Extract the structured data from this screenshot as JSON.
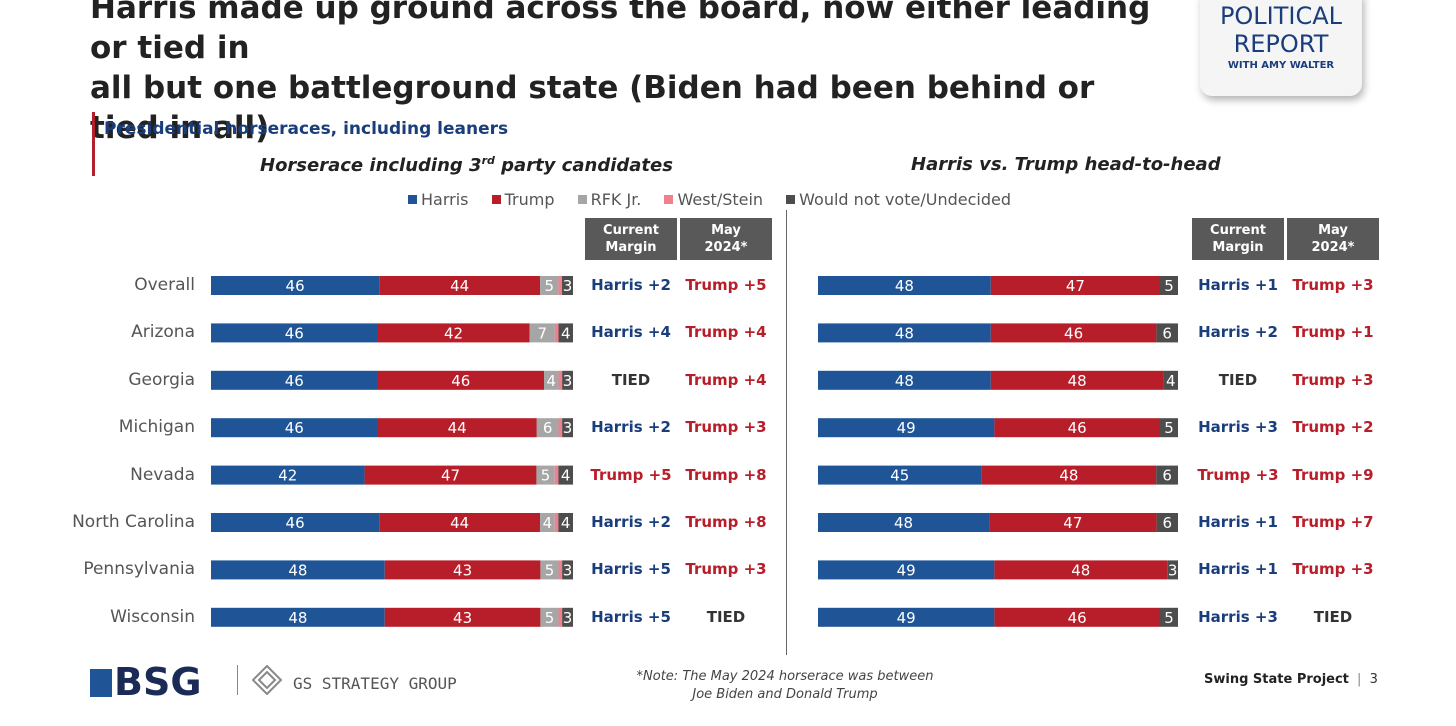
{
  "header": {
    "title_line1": "Harris made up ground across the board, now either leading or tied in",
    "title_line2": "all but one battleground state (Biden had been behind or tied in all)",
    "logo_line1": "POLITICAL",
    "logo_line2": "REPORT",
    "logo_line3": "WITH AMY WALTER"
  },
  "subtitle": "Presidential horseraces, including leaners",
  "colors": {
    "harris": "#1f5596",
    "trump": "#b81e29",
    "rfk": "#a6a6a6",
    "west_stein": "#f0808c",
    "undecided": "#4d4d4d",
    "harris_text": "#1a3d7c",
    "trump_text": "#b81e29"
  },
  "legend": [
    {
      "label": "Harris",
      "color": "#1f5596"
    },
    {
      "label": "Trump",
      "color": "#b81e29"
    },
    {
      "label": "RFK Jr.",
      "color": "#a6a6a6"
    },
    {
      "label": "West/Stein",
      "color": "#f0808c"
    },
    {
      "label": "Would not vote/Undecided",
      "color": "#4d4d4d"
    }
  ],
  "table_headers": {
    "current_line1": "Current",
    "current_line2": "Margin",
    "may_line1": "May",
    "may_line2": "2024*"
  },
  "chart_data": [
    {
      "type": "bar",
      "title_part1": "Horserace including 3",
      "title_sup": "rd",
      "title_part2": " party candidates",
      "categories": [
        "Overall",
        "Arizona",
        "Georgia",
        "Michigan",
        "Nevada",
        "North Carolina",
        "Pennsylvania",
        "Wisconsin"
      ],
      "series": [
        {
          "name": "Harris",
          "values": [
            46,
            46,
            46,
            46,
            42,
            46,
            48,
            48
          ]
        },
        {
          "name": "Trump",
          "values": [
            44,
            42,
            46,
            44,
            47,
            44,
            43,
            43
          ]
        },
        {
          "name": "RFK Jr.",
          "values": [
            5,
            7,
            4,
            6,
            5,
            4,
            5,
            5
          ]
        },
        {
          "name": "West/Stein",
          "values": [
            1,
            1,
            1,
            1,
            1,
            1,
            1,
            1
          ]
        },
        {
          "name": "Would not vote/Undecided",
          "values": [
            3,
            4,
            3,
            3,
            4,
            4,
            3,
            3
          ]
        }
      ],
      "stacked": true,
      "current_margin": [
        "Harris +2",
        "Harris +4",
        "TIED",
        "Harris +2",
        "Trump +5",
        "Harris +2",
        "Harris +5",
        "Harris +5"
      ],
      "may_2024": [
        "Trump +5",
        "Trump +4",
        "Trump +4",
        "Trump +3",
        "Trump +8",
        "Trump +8",
        "Trump +3",
        "TIED"
      ]
    },
    {
      "type": "bar",
      "title": "Harris vs. Trump head-to-head",
      "categories": [
        "Overall",
        "Arizona",
        "Georgia",
        "Michigan",
        "Nevada",
        "North Carolina",
        "Pennsylvania",
        "Wisconsin"
      ],
      "series": [
        {
          "name": "Harris",
          "values": [
            48,
            48,
            48,
            49,
            45,
            48,
            49,
            49
          ]
        },
        {
          "name": "Trump",
          "values": [
            47,
            46,
            48,
            46,
            48,
            47,
            48,
            46
          ]
        },
        {
          "name": "Would not vote/Undecided",
          "values": [
            5,
            6,
            4,
            5,
            6,
            6,
            3,
            5
          ]
        }
      ],
      "stacked": true,
      "current_margin": [
        "Harris +1",
        "Harris +2",
        "TIED",
        "Harris +3",
        "Trump +3",
        "Harris +1",
        "Harris +1",
        "Harris +3"
      ],
      "may_2024": [
        "Trump +3",
        "Trump +1",
        "Trump +3",
        "Trump +2",
        "Trump +9",
        "Trump +7",
        "Trump +3",
        "TIED"
      ]
    }
  ],
  "footer": {
    "bsg_logo": "BSG",
    "gs_logo": "GS STRATEGY GROUP",
    "footnote_line1": "*Note: The May 2024 horserace was between",
    "footnote_line2": "Joe Biden and Donald Trump",
    "project": "Swing State Project",
    "page_sep": "|",
    "page_number": "3"
  }
}
